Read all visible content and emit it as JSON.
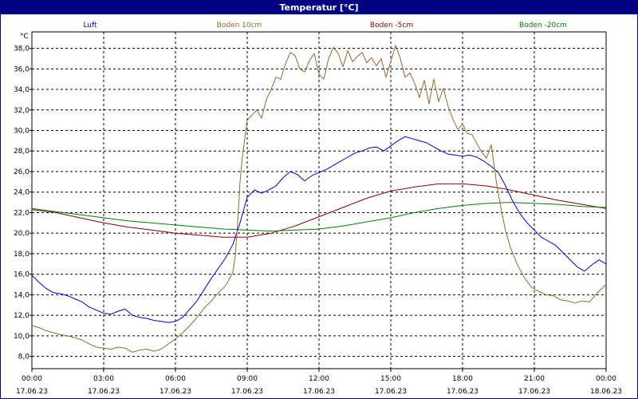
{
  "window": {
    "title": "Temperatur [°C]"
  },
  "chart_data": {
    "type": "line",
    "title": "Temperatur [°C]",
    "ylabel": "°C",
    "xlabel": "",
    "ylim": [
      6.8,
      39.6
    ],
    "xlim": [
      0,
      24
    ],
    "grid": true,
    "legend_placement": "top",
    "y_ticks": [
      "8,0",
      "10,0",
      "12,0",
      "14,0",
      "16,0",
      "18,0",
      "20,0",
      "22,0",
      "24,0",
      "26,0",
      "28,0",
      "30,0",
      "32,0",
      "34,0",
      "36,0",
      "38,0"
    ],
    "y_tick_values": [
      8,
      10,
      12,
      14,
      16,
      18,
      20,
      22,
      24,
      26,
      28,
      30,
      32,
      34,
      36,
      38
    ],
    "x_ticks": [
      {
        "value": 0,
        "time": "00:00",
        "date": "17.06.23"
      },
      {
        "value": 3,
        "time": "03:00",
        "date": "17.06.23"
      },
      {
        "value": 6,
        "time": "06:00",
        "date": "17.06.23"
      },
      {
        "value": 9,
        "time": "09:00",
        "date": "17.06.23"
      },
      {
        "value": 12,
        "time": "12:00",
        "date": "17.06.23"
      },
      {
        "value": 15,
        "time": "15:00",
        "date": "17.06.23"
      },
      {
        "value": 18,
        "time": "18:00",
        "date": "17.06.23"
      },
      {
        "value": 21,
        "time": "21:00",
        "date": "17.06.23"
      },
      {
        "value": 24,
        "time": "00:00",
        "date": "18.06.23"
      }
    ],
    "series": [
      {
        "name": "Luft",
        "color": "#0000cc",
        "x": [
          0,
          0.3,
          0.6,
          0.9,
          1.2,
          1.5,
          1.8,
          2.1,
          2.4,
          2.7,
          3.0,
          3.3,
          3.6,
          3.9,
          4.2,
          4.5,
          4.8,
          5.1,
          5.4,
          5.7,
          6.0,
          6.3,
          6.6,
          6.9,
          7.2,
          7.5,
          7.8,
          8.1,
          8.4,
          8.7,
          9.0,
          9.3,
          9.6,
          9.9,
          10.2,
          10.5,
          10.8,
          11.1,
          11.4,
          11.7,
          12.0,
          12.3,
          12.6,
          12.9,
          13.2,
          13.5,
          13.8,
          14.1,
          14.4,
          14.7,
          15.0,
          15.3,
          15.6,
          15.9,
          16.2,
          16.5,
          16.8,
          17.1,
          17.4,
          17.7,
          18.0,
          18.3,
          18.6,
          18.9,
          19.2,
          19.5,
          19.8,
          20.1,
          20.4,
          20.7,
          21.0,
          21.3,
          21.6,
          21.9,
          22.2,
          22.5,
          22.8,
          23.1,
          23.4,
          23.7,
          24.0
        ],
        "y": [
          15.9,
          15.2,
          14.6,
          14.2,
          14.1,
          13.9,
          13.6,
          13.3,
          12.8,
          12.5,
          12.2,
          12.1,
          12.4,
          12.6,
          12.0,
          11.8,
          11.7,
          11.5,
          11.4,
          11.3,
          11.4,
          11.8,
          12.6,
          13.4,
          14.5,
          15.6,
          16.6,
          17.6,
          18.9,
          21.0,
          23.5,
          24.2,
          23.9,
          24.2,
          24.6,
          25.4,
          26.0,
          25.7,
          25.1,
          25.6,
          25.9,
          26.2,
          26.6,
          27.0,
          27.4,
          27.8,
          28.0,
          28.3,
          28.4,
          28.0,
          28.5,
          29.0,
          29.4,
          29.2,
          29.0,
          28.8,
          28.4,
          28.0,
          27.7,
          27.6,
          27.5,
          27.6,
          27.4,
          27.0,
          26.5,
          25.9,
          24.6,
          23.1,
          21.9,
          21.0,
          20.3,
          19.6,
          19.2,
          18.8,
          18.1,
          17.4,
          16.7,
          16.3,
          16.9,
          17.4,
          17.0
        ]
      },
      {
        "name": "Boden 10cm",
        "color": "#996633",
        "x": [
          0,
          0.3,
          0.6,
          0.9,
          1.2,
          1.5,
          1.8,
          2.1,
          2.4,
          2.7,
          3.0,
          3.3,
          3.6,
          3.9,
          4.2,
          4.5,
          4.8,
          5.1,
          5.4,
          5.7,
          6.0,
          6.3,
          6.6,
          6.9,
          7.2,
          7.5,
          7.8,
          8.1,
          8.4,
          8.5,
          8.6,
          8.7,
          8.8,
          9.0,
          9.2,
          9.4,
          9.6,
          9.8,
          10.0,
          10.2,
          10.4,
          10.6,
          10.8,
          11.0,
          11.2,
          11.4,
          11.6,
          11.8,
          12.0,
          12.2,
          12.4,
          12.6,
          12.8,
          13.0,
          13.2,
          13.4,
          13.6,
          13.8,
          14.0,
          14.2,
          14.4,
          14.6,
          14.8,
          15.0,
          15.2,
          15.4,
          15.6,
          15.8,
          16.0,
          16.2,
          16.4,
          16.6,
          16.8,
          17.0,
          17.2,
          17.4,
          17.6,
          17.8,
          18.0,
          18.2,
          18.4,
          18.6,
          18.8,
          19.0,
          19.2,
          19.4,
          19.6,
          19.8,
          20.0,
          20.3,
          20.6,
          20.9,
          21.2,
          21.5,
          21.8,
          22.1,
          22.4,
          22.7,
          23.0,
          23.3,
          23.6,
          24.0
        ],
        "y": [
          11.0,
          10.8,
          10.5,
          10.3,
          10.1,
          10.0,
          9.8,
          9.6,
          9.2,
          8.9,
          8.8,
          8.7,
          8.9,
          8.8,
          8.4,
          8.6,
          8.7,
          8.5,
          8.7,
          9.2,
          9.7,
          10.3,
          11.0,
          11.8,
          12.7,
          13.4,
          14.2,
          14.9,
          16.2,
          17.8,
          21.0,
          25.0,
          27.5,
          31.0,
          31.5,
          32.0,
          31.2,
          33.0,
          34.0,
          35.2,
          35.0,
          36.5,
          37.6,
          37.3,
          36.0,
          35.7,
          36.8,
          37.5,
          35.5,
          35.0,
          37.0,
          38.1,
          37.5,
          36.2,
          37.8,
          36.7,
          37.2,
          37.6,
          36.6,
          37.1,
          36.3,
          37.0,
          35.2,
          36.7,
          38.3,
          37.0,
          35.2,
          35.6,
          34.6,
          33.2,
          34.9,
          32.6,
          35.0,
          32.8,
          34.1,
          32.3,
          31.1,
          30.1,
          30.6,
          29.7,
          29.6,
          28.7,
          27.9,
          27.3,
          28.6,
          25.2,
          22.5,
          20.2,
          18.6,
          16.9,
          15.6,
          14.7,
          14.3,
          14.0,
          13.9,
          13.5,
          13.4,
          13.2,
          13.4,
          13.3,
          14.1,
          15.0
        ]
      },
      {
        "name": "Boden -5cm",
        "color": "#8b0000",
        "x": [
          0,
          1,
          2,
          3,
          4,
          5,
          6,
          7,
          8,
          9,
          10,
          11,
          12,
          13,
          14,
          15,
          16,
          17,
          18,
          19,
          20,
          21,
          22,
          23,
          24
        ],
        "y": [
          22.3,
          22.0,
          21.5,
          21.0,
          20.6,
          20.3,
          20.0,
          19.8,
          19.6,
          19.6,
          20.0,
          20.7,
          21.6,
          22.5,
          23.4,
          24.1,
          24.5,
          24.8,
          24.8,
          24.6,
          24.2,
          23.7,
          23.2,
          22.8,
          22.4
        ]
      },
      {
        "name": "Boden -20cm",
        "color": "#008000",
        "x": [
          0,
          1,
          2,
          3,
          4,
          5,
          6,
          7,
          8,
          9,
          10,
          11,
          12,
          13,
          14,
          15,
          16,
          17,
          18,
          19,
          20,
          21,
          22,
          23,
          24
        ],
        "y": [
          22.4,
          22.1,
          21.8,
          21.5,
          21.2,
          21.0,
          20.8,
          20.6,
          20.4,
          20.3,
          20.2,
          20.3,
          20.4,
          20.7,
          21.1,
          21.5,
          22.0,
          22.4,
          22.7,
          22.9,
          23.0,
          22.9,
          22.8,
          22.6,
          22.5
        ]
      }
    ]
  }
}
